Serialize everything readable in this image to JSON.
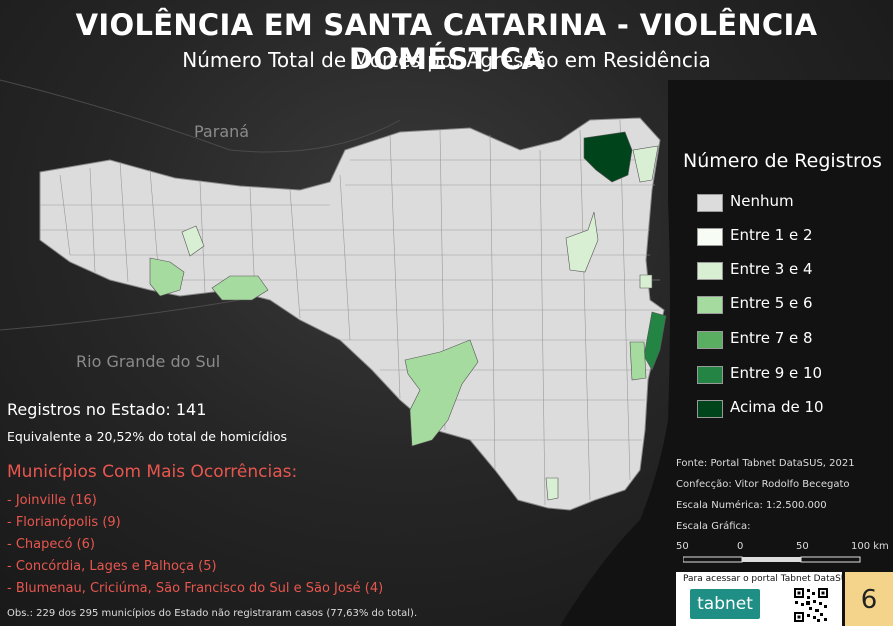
{
  "title": "VIOLÊNCIA EM SANTA CATARINA - VIOLÊNCIA DOMÉSTICA",
  "subtitle": "Número Total de Mortes por Agressão em Residência",
  "geo_labels": {
    "parana": "Paraná",
    "rio_grande_do_sul": "Rio Grande do Sul"
  },
  "legend": {
    "title": "Número de Registros",
    "items": [
      {
        "label": "Nenhum",
        "color": "#dcdcdc"
      },
      {
        "label": "Entre 1 e 2",
        "color": "#f7fcf5"
      },
      {
        "label": "Entre 3 e 4",
        "color": "#d9efd3"
      },
      {
        "label": "Entre 5 e 6",
        "color": "#a6dba0"
      },
      {
        "label": "Entre 7 e 8",
        "color": "#5aae61"
      },
      {
        "label": "Entre 9 e 10",
        "color": "#238443"
      },
      {
        "label": "Acima de 10",
        "color": "#00441b"
      }
    ]
  },
  "stats": {
    "total": "Registros no Estado: 141",
    "pct": "Equivalente a 20,52% do total de homicídios"
  },
  "municipios": {
    "title": "Municípios Com Mais Ocorrências:",
    "items": [
      "- Joinville (16)",
      "- Florianópolis (9)",
      "- Chapecó (6)",
      "- Concórdia, Lages e Palhoça (5)",
      "- Blumenau, Criciúma, São Francisco do Sul e São José (4)"
    ]
  },
  "obs": "Obs.: 229 dos 295 municípios do Estado não registraram casos (77,63% do total).",
  "source": {
    "fonte": "Fonte: Portal Tabnet DataSUS, 2021",
    "autor": "Confecção: Vitor Rodolfo Becegato",
    "escala_num": "Escala Numérica: 1:2.500.000",
    "escala_graf": "Escala Gráfica:",
    "scale_ticks": [
      "50",
      "0",
      "50",
      "100 km"
    ]
  },
  "access": {
    "label": "Para acessar o portal Tabnet DataSUS:",
    "logo_text": "tabnet"
  },
  "page_number": "6",
  "colors": {
    "accent_red": "#e8564e",
    "badge": "#f3d48a"
  }
}
